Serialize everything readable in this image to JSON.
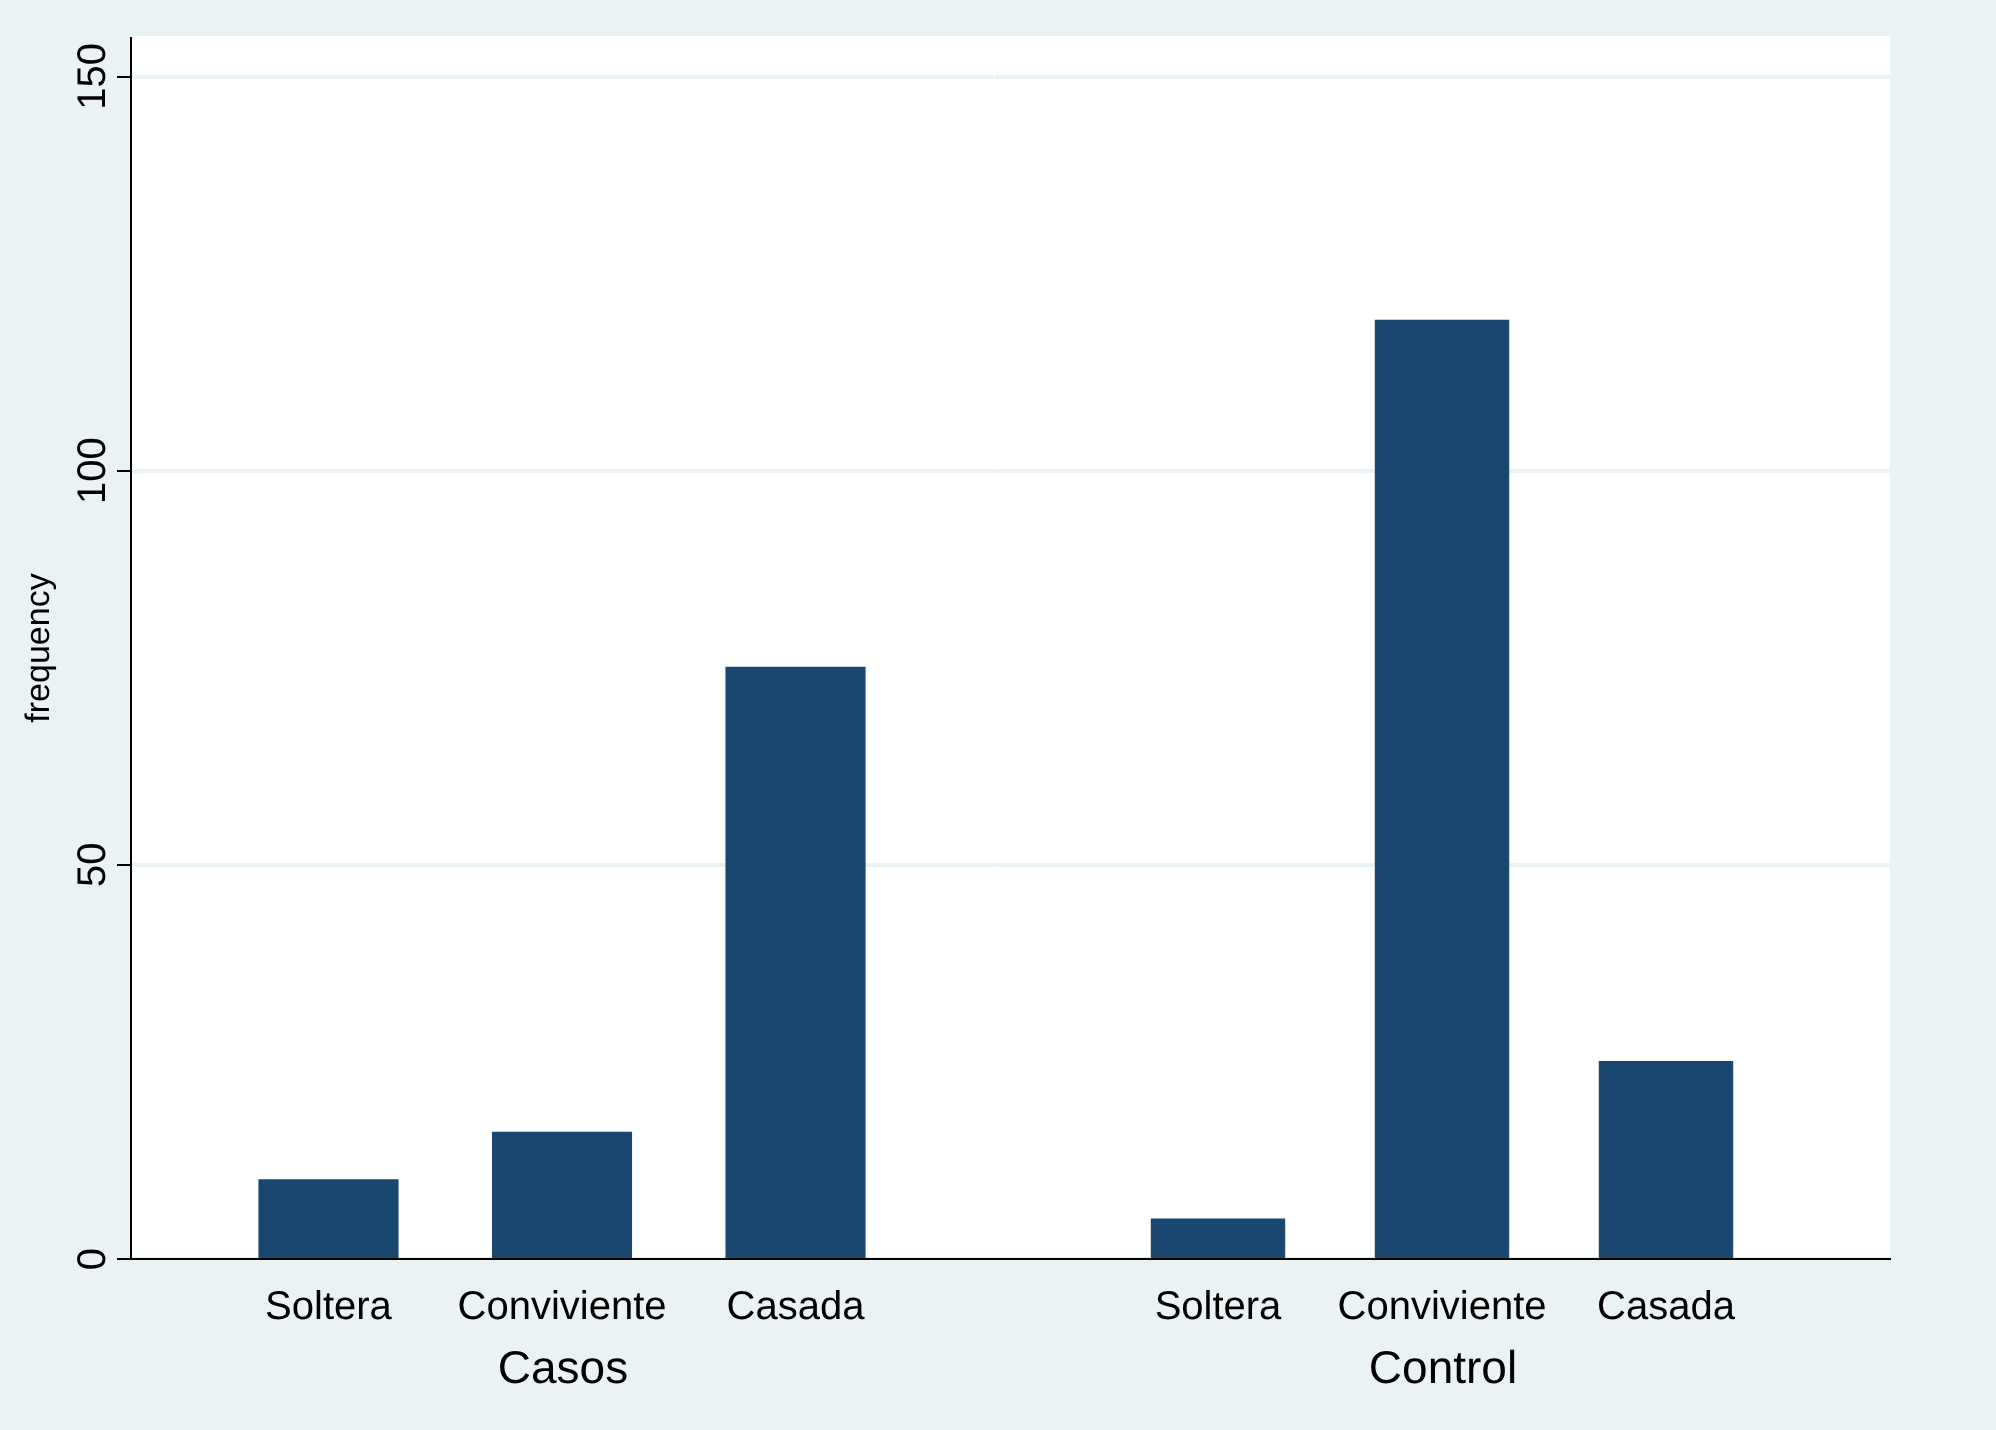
{
  "chart_data": [
    {
      "type": "bar",
      "xlabel": "Casos",
      "ylabel": "frequency",
      "categories": [
        "Soltera",
        "Conviviente",
        "Casada"
      ],
      "values": [
        10,
        16,
        75
      ],
      "color": "#1a476f",
      "ylim": [
        0,
        155
      ],
      "yticks": [
        0,
        50,
        100,
        150
      ],
      "grid": "y"
    },
    {
      "type": "bar",
      "xlabel": "Control",
      "categories": [
        "Soltera",
        "Conviviente",
        "Casada"
      ],
      "values": [
        5,
        119,
        25
      ],
      "color": "#1a476f",
      "ylim": [
        0,
        155
      ],
      "yticks": [
        0,
        50,
        100,
        150
      ],
      "grid": "y",
      "tick_labels": "x"
    }
  ]
}
